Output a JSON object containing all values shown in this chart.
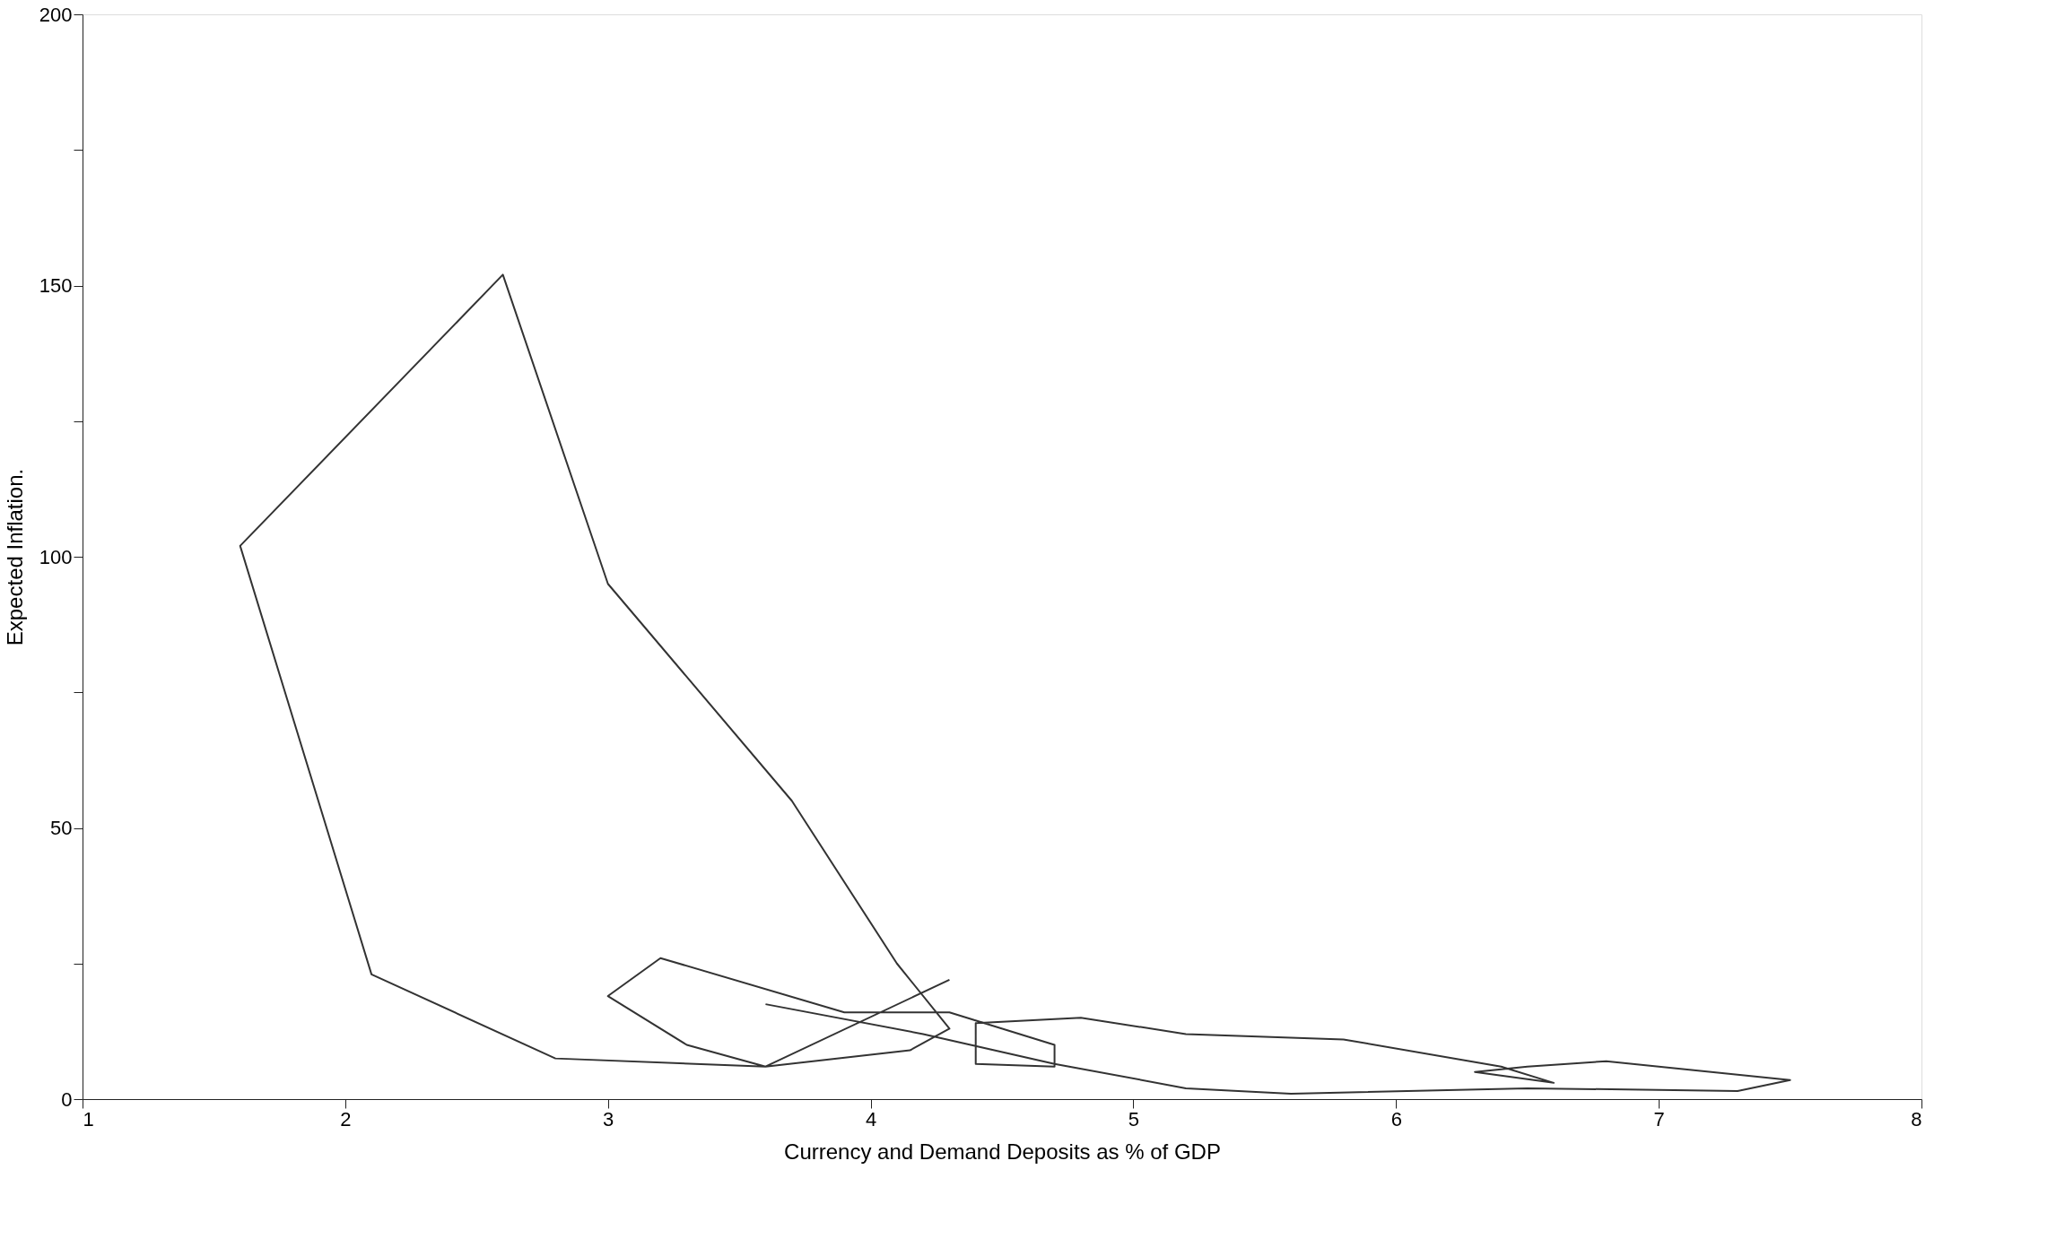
{
  "chart_data": {
    "type": "line",
    "xlabel": "Currency and Demand Deposits as % of GDP",
    "ylabel": "Expected Inflation.",
    "x": [
      4.3,
      3.6,
      2.8,
      2.1,
      1.6,
      2.6,
      3.0,
      3.7,
      4.1,
      4.3,
      4.15,
      3.6,
      3.3,
      3.0,
      3.2,
      3.9,
      4.3,
      4.7,
      4.7,
      4.4,
      4.4,
      4.8,
      5.2,
      5.8,
      6.4,
      6.6,
      6.3,
      6.5,
      6.8,
      7.5,
      7.3,
      6.5,
      5.6,
      5.2,
      4.7,
      4.2,
      3.6
    ],
    "series": [
      {
        "color": "#333333",
        "values": [
          22,
          6,
          7.5,
          23,
          102,
          152,
          95,
          55,
          25,
          13,
          9,
          6,
          10,
          19,
          26,
          16,
          16,
          10,
          6,
          6.5,
          14,
          15,
          12,
          11,
          6,
          3,
          5,
          6,
          7,
          3.5,
          1.5,
          2,
          1,
          2,
          6.5,
          12,
          17.5
        ]
      }
    ],
    "xlim": [
      1,
      8
    ],
    "xticks": [
      1,
      2,
      3,
      4,
      5,
      6,
      7,
      8
    ],
    "ylim": [
      0,
      200
    ],
    "yticks": [
      0,
      {
        "value": 25,
        "label": null
      },
      50,
      {
        "value": 75,
        "label": null
      },
      100,
      {
        "value": 125,
        "label": null
      },
      150,
      {
        "value": 175,
        "label": null
      },
      200
    ],
    "grid": false,
    "legend": false,
    "marker": "none",
    "line_style": "solid"
  }
}
